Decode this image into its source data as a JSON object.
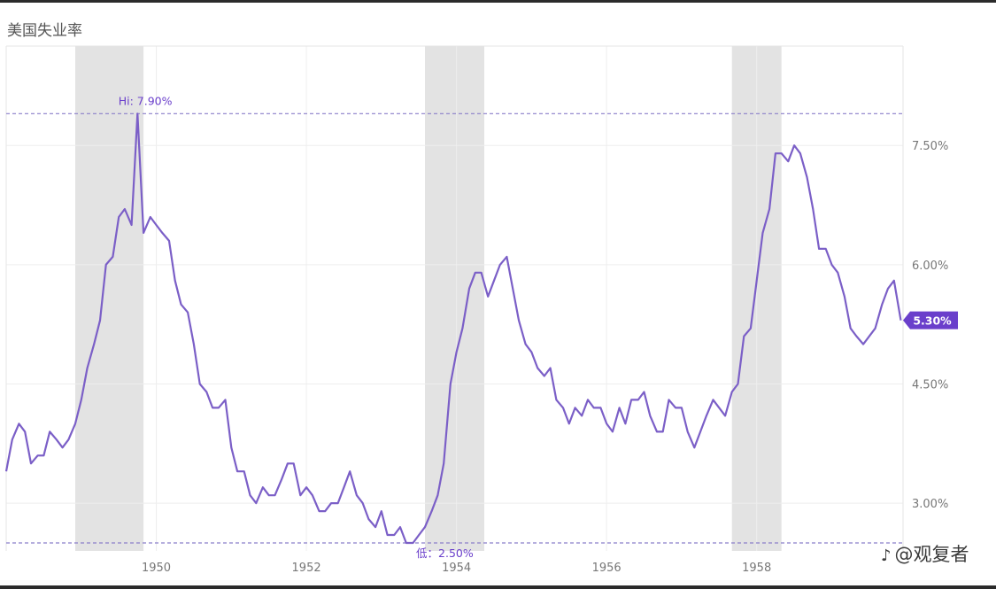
{
  "title": "美国失业率",
  "watermark": {
    "text": "@观复者"
  },
  "colors": {
    "line": "#7b5fc7",
    "recession": "#e3e3e3",
    "grid": "#eeeeee",
    "dashed": "#8a7fc9",
    "marker_fill": "#6a3fcb",
    "marker_text": "#ffffff",
    "tick_text": "#777777"
  },
  "chart_data": {
    "type": "line",
    "title": "美国失业率",
    "xlim": [
      1948.0,
      1959.95
    ],
    "ylim": [
      2.4,
      8.75
    ],
    "x_ticks": [
      1950,
      1952,
      1954,
      1956,
      1958
    ],
    "x_tick_labels": [
      "1950",
      "1952",
      "1954",
      "1956",
      "1958"
    ],
    "y_ticks": [
      3.0,
      4.5,
      6.0,
      7.5
    ],
    "y_tick_labels": [
      "3.00%",
      "4.50%",
      "6.00%",
      "7.50%"
    ],
    "grid": true,
    "recessions": [
      [
        1948.92,
        1949.83
      ],
      [
        1953.58,
        1954.37
      ],
      [
        1957.67,
        1958.33
      ]
    ],
    "hi": {
      "label": "Hi: 7.90%",
      "x": 1949.83,
      "y": 7.9
    },
    "lo": {
      "label": "低：2.50%",
      "x": 1953.58,
      "y": 2.5
    },
    "latest": {
      "label": "5.30%",
      "x": 1959.95,
      "y": 5.3
    },
    "series": [
      {
        "x": [
          1948.0,
          1948.08,
          1948.17,
          1948.25,
          1948.33,
          1948.42,
          1948.5,
          1948.58,
          1948.67,
          1948.75,
          1948.83,
          1948.92,
          1949.0,
          1949.08,
          1949.17,
          1949.25,
          1949.33,
          1949.42,
          1949.5,
          1949.58,
          1949.67,
          1949.75,
          1949.83,
          1949.92,
          1950.0,
          1950.08,
          1950.17,
          1950.25,
          1950.33,
          1950.42,
          1950.5,
          1950.58,
          1950.67,
          1950.75,
          1950.83,
          1950.92,
          1951.0,
          1951.08,
          1951.17,
          1951.25,
          1951.33,
          1951.42,
          1951.5,
          1951.58,
          1951.67,
          1951.75,
          1951.83,
          1951.92,
          1952.0,
          1952.08,
          1952.17,
          1952.25,
          1952.33,
          1952.42,
          1952.5,
          1952.58,
          1952.67,
          1952.75,
          1952.83,
          1952.92,
          1953.0,
          1953.08,
          1953.17,
          1953.25,
          1953.33,
          1953.42,
          1953.5,
          1953.58,
          1953.67,
          1953.75,
          1953.83,
          1953.92,
          1954.0,
          1954.08,
          1954.17,
          1954.25,
          1954.33,
          1954.42,
          1954.5,
          1954.58,
          1954.67,
          1954.75,
          1954.83,
          1954.92,
          1955.0,
          1955.08,
          1955.17,
          1955.25,
          1955.33,
          1955.42,
          1955.5,
          1955.58,
          1955.67,
          1955.75,
          1955.83,
          1955.92,
          1956.0,
          1956.08,
          1956.17,
          1956.25,
          1956.33,
          1956.42,
          1956.5,
          1956.58,
          1956.67,
          1956.75,
          1956.83,
          1956.92,
          1957.0,
          1957.08,
          1957.17,
          1957.25,
          1957.33,
          1957.42,
          1957.5,
          1957.58,
          1957.67,
          1957.75,
          1957.83,
          1957.92,
          1958.0,
          1958.08,
          1958.17,
          1958.25,
          1958.33,
          1958.42,
          1958.5,
          1958.58,
          1958.67,
          1958.75,
          1958.83,
          1958.92,
          1959.0,
          1959.08,
          1959.17,
          1959.25,
          1959.33,
          1959.42,
          1959.5,
          1959.58,
          1959.67,
          1959.75,
          1959.83,
          1959.92
        ],
        "values": [
          3.4,
          3.8,
          4.0,
          3.9,
          3.5,
          3.6,
          3.6,
          3.9,
          3.8,
          3.7,
          3.8,
          4.0,
          4.3,
          4.7,
          5.0,
          5.3,
          6.0,
          6.1,
          6.6,
          6.7,
          6.5,
          7.9,
          6.4,
          6.6,
          6.5,
          6.4,
          6.3,
          5.8,
          5.5,
          5.4,
          5.0,
          4.5,
          4.4,
          4.2,
          4.2,
          4.3,
          3.7,
          3.4,
          3.4,
          3.1,
          3.0,
          3.2,
          3.1,
          3.1,
          3.3,
          3.5,
          3.5,
          3.1,
          3.2,
          3.1,
          2.9,
          2.9,
          3.0,
          3.0,
          3.2,
          3.4,
          3.1,
          3.0,
          2.8,
          2.7,
          2.9,
          2.6,
          2.6,
          2.7,
          2.5,
          2.5,
          2.6,
          2.7,
          2.9,
          3.1,
          3.5,
          4.5,
          4.9,
          5.2,
          5.7,
          5.9,
          5.9,
          5.6,
          5.8,
          6.0,
          6.1,
          5.7,
          5.3,
          5.0,
          4.9,
          4.7,
          4.6,
          4.7,
          4.3,
          4.2,
          4.0,
          4.2,
          4.1,
          4.3,
          4.2,
          4.2,
          4.0,
          3.9,
          4.2,
          4.0,
          4.3,
          4.3,
          4.4,
          4.1,
          3.9,
          3.9,
          4.3,
          4.2,
          4.2,
          3.9,
          3.7,
          3.9,
          4.1,
          4.3,
          4.2,
          4.1,
          4.4,
          4.5,
          5.1,
          5.2,
          5.8,
          6.4,
          6.7,
          7.4,
          7.4,
          7.3,
          7.5,
          7.4,
          7.1,
          6.7,
          6.2,
          6.2,
          6.0,
          5.9,
          5.6,
          5.2,
          5.1,
          5.0,
          5.1,
          5.2,
          5.5,
          5.7,
          5.8,
          5.3
        ]
      }
    ]
  }
}
